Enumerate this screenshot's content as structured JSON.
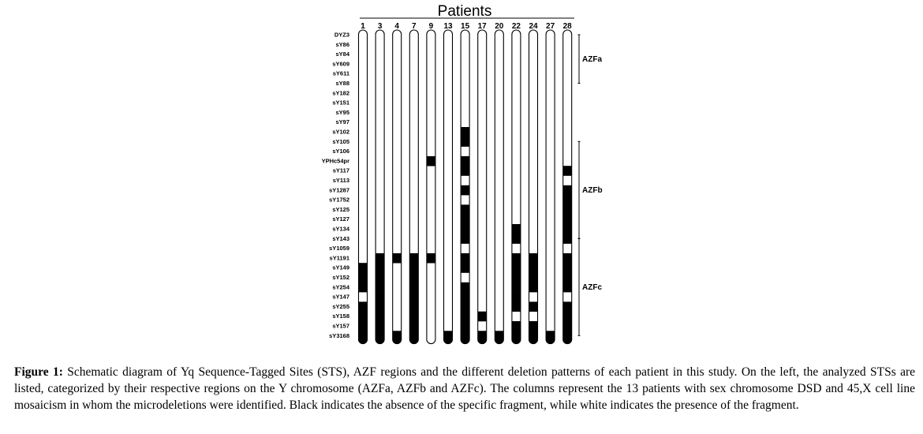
{
  "header": {
    "title": "Patients"
  },
  "markers": [
    "DYZ3",
    "sY86",
    "sY84",
    "sY609",
    "sY611",
    "sY88",
    "sY182",
    "sY151",
    "sY95",
    "sY97",
    "sY102",
    "sY105",
    "sY106",
    "YPHc54pr",
    "sY117",
    "sY113",
    "sY1287",
    "sY1752",
    "sY125",
    "sY127",
    "sY134",
    "sY143",
    "sY1059",
    "sY1191",
    "sY149",
    "sY152",
    "sY254",
    "sY147",
    "sY255",
    "sY158",
    "sY157",
    "sY3168"
  ],
  "regions": [
    {
      "label": "AZFa",
      "from_marker": 0,
      "to_marker": 5
    },
    {
      "label": "AZFb",
      "from_marker": 11,
      "to_marker": 21
    },
    {
      "label": "AZFc",
      "from_marker": 21,
      "to_marker": 31
    }
  ],
  "patients": [
    {
      "label": "1",
      "absent": [
        24,
        25,
        26,
        28,
        29,
        30,
        31
      ]
    },
    {
      "label": "3",
      "absent": [
        23,
        24,
        25,
        26,
        27,
        28,
        29,
        30,
        31
      ]
    },
    {
      "label": "4",
      "absent": [
        23,
        31
      ]
    },
    {
      "label": "7",
      "absent": [
        23,
        24,
        25,
        26,
        27,
        28,
        29,
        30,
        31
      ]
    },
    {
      "label": "9",
      "absent": [
        13,
        23
      ]
    },
    {
      "label": "13",
      "absent": [
        31
      ]
    },
    {
      "label": "15",
      "absent": [
        10,
        11,
        13,
        14,
        16,
        18,
        19,
        20,
        21,
        23,
        24,
        26,
        27,
        28,
        29,
        30,
        31
      ]
    },
    {
      "label": "17",
      "absent": [
        29,
        31
      ]
    },
    {
      "label": "20",
      "absent": [
        31
      ]
    },
    {
      "label": "22",
      "absent": [
        20,
        21,
        23,
        24,
        25,
        26,
        27,
        28,
        30,
        31
      ]
    },
    {
      "label": "24",
      "absent": [
        23,
        24,
        25,
        26,
        28,
        30,
        31
      ]
    },
    {
      "label": "27",
      "absent": [
        31
      ]
    },
    {
      "label": "28",
      "absent": [
        14,
        16,
        17,
        18,
        19,
        20,
        21,
        23,
        24,
        25,
        26,
        28,
        29,
        30,
        31
      ]
    }
  ],
  "legend": {
    "absent_color": "#000000",
    "present_color": "#ffffff"
  },
  "caption": {
    "label": "Figure 1:",
    "text": " Schematic diagram of Yq Sequence-Tagged Sites (STS), AZF regions and the different deletion patterns of each patient in this study. On the left, the analyzed STSs are listed, categorized by their respective regions on the Y chromosome (AZFa, AZFb and AZFc). The columns represent the 13 patients with sex chromosome DSD and 45,X cell line mosaicism in whom the microdeletions were identified. Black indicates the absence of the specific fragment, while white indicates the presence of the fragment."
  }
}
